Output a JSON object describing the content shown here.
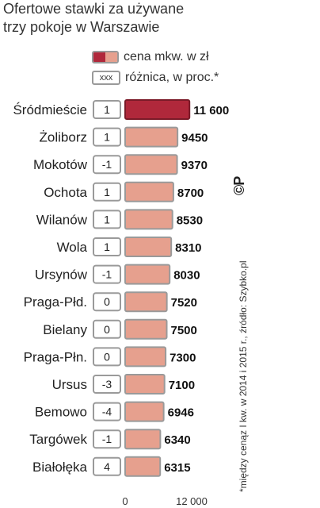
{
  "title_lines": [
    "Ofertowe stawki za używane",
    "trzy pokoje w Warszawie"
  ],
  "legend": {
    "price_label": "cena mkw. w zł",
    "diff_box": "xxx",
    "diff_label": "różnica, w proc.*"
  },
  "footnote": "*między cenąz I kw. w 2014 i 2015 r., źródło: Szybko.pl",
  "copyright": "©P",
  "colors": {
    "highlight": "#b0283b",
    "bar": "#e6a08e",
    "border": "#9a9a9a",
    "highlight_border": "#7a1a28"
  },
  "chart_data": {
    "type": "bar",
    "orientation": "horizontal",
    "categories": [
      "Śródmieście",
      "Żoliborz",
      "Mokotów",
      "Ochota",
      "Wilanów",
      "Wola",
      "Ursynów",
      "Praga-Płd.",
      "Bielany",
      "Praga-Płn.",
      "Ursus",
      "Bemowo",
      "Targówek",
      "Białołęka"
    ],
    "values": [
      11600,
      9450,
      9370,
      8700,
      8530,
      8310,
      8030,
      7520,
      7500,
      7300,
      7100,
      6946,
      6340,
      6315
    ],
    "value_labels": [
      "11 600",
      "9450",
      "9370",
      "8700",
      "8530",
      "8310",
      "8030",
      "7520",
      "7500",
      "7300",
      "7100",
      "6946",
      "6340",
      "6315"
    ],
    "change_percent": [
      "1",
      "1",
      "-1",
      "1",
      "1",
      "1",
      "-1",
      "0",
      "0",
      "0",
      "-3",
      "-4",
      "-1",
      "4"
    ],
    "highlight_index": 0,
    "xlim": [
      0,
      12000
    ],
    "x_ticks": [
      "0",
      "12 000"
    ],
    "xlabel": "",
    "ylabel": ""
  }
}
